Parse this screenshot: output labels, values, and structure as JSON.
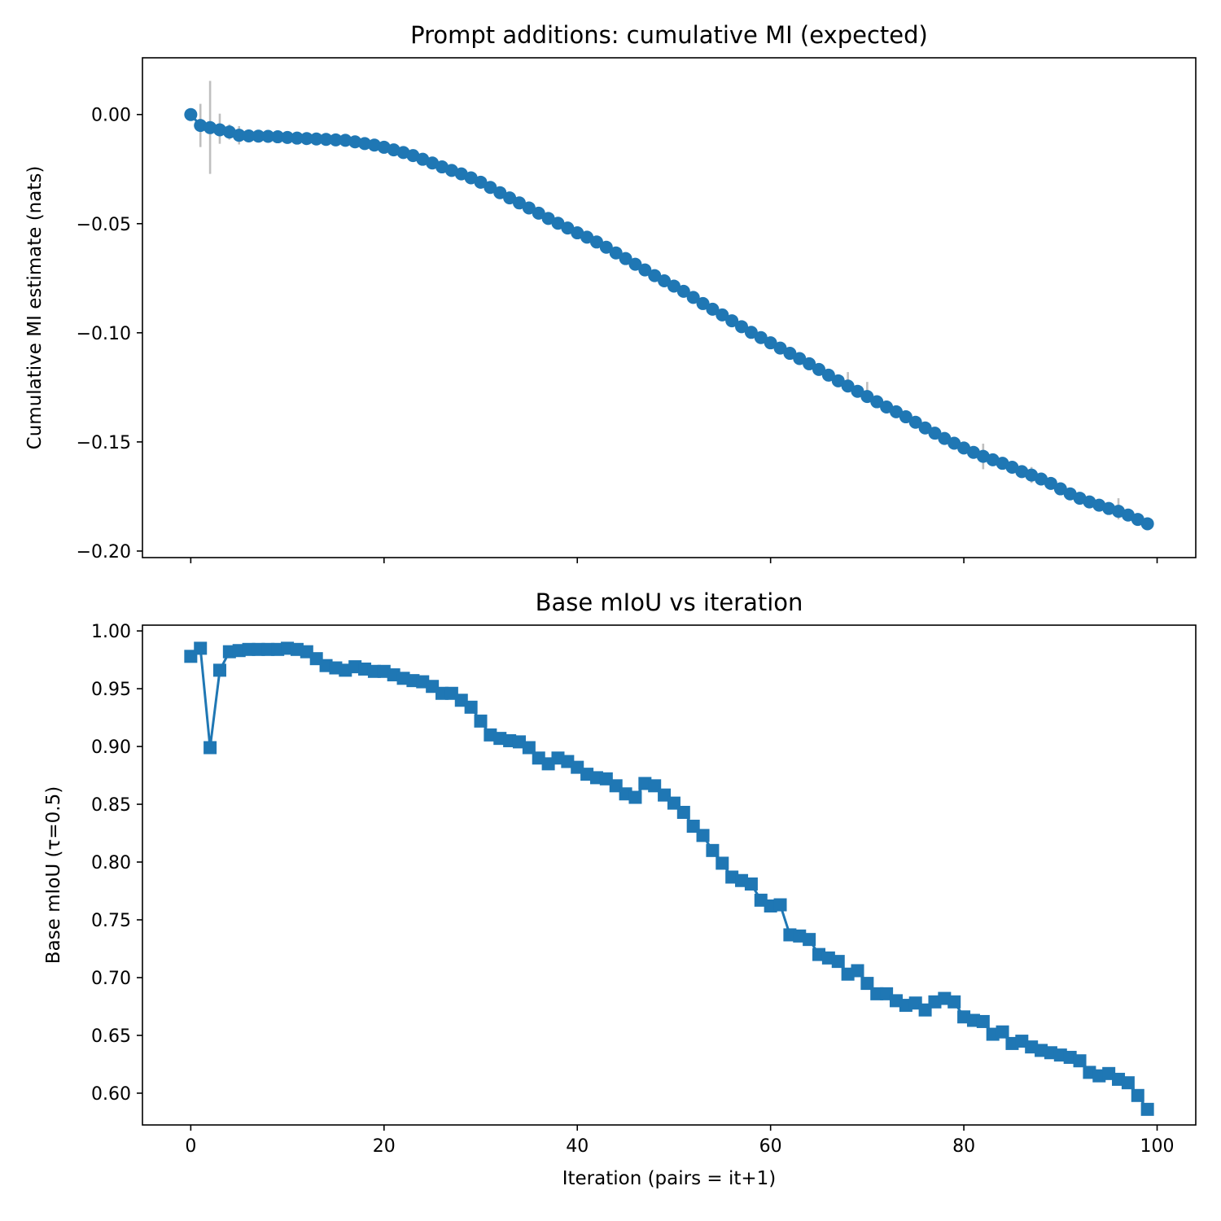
{
  "colors": {
    "series": "#1f77b4",
    "errorbar": "#bfbfbf",
    "axes": "#000000",
    "background": "#ffffff"
  },
  "chart_data": [
    {
      "type": "scatter",
      "title": "Prompt additions: cumulative MI (expected)",
      "xlabel": "",
      "ylabel": "Cumulative MI estimate (nats)",
      "xlim": [
        -5,
        104
      ],
      "ylim": [
        -0.203,
        0.026
      ],
      "xticks": [
        0,
        20,
        40,
        60,
        80,
        100
      ],
      "xtick_labels": [
        "",
        "",
        "",
        "",
        "",
        ""
      ],
      "yticks": [
        0.0,
        -0.05,
        -0.1,
        -0.15,
        -0.2
      ],
      "ytick_labels": [
        "0.00",
        "−0.05",
        "−0.10",
        "−0.15",
        "−0.20"
      ],
      "grid": false,
      "legend": "none",
      "marker": "circle",
      "line": true,
      "x": [
        0,
        1,
        2,
        3,
        4,
        5,
        6,
        7,
        8,
        9,
        10,
        11,
        12,
        13,
        14,
        15,
        16,
        17,
        18,
        19,
        20,
        21,
        22,
        23,
        24,
        25,
        26,
        27,
        28,
        29,
        30,
        31,
        32,
        33,
        34,
        35,
        36,
        37,
        38,
        39,
        40,
        41,
        42,
        43,
        44,
        45,
        46,
        47,
        48,
        49,
        50,
        51,
        52,
        53,
        54,
        55,
        56,
        57,
        58,
        59,
        60,
        61,
        62,
        63,
        64,
        65,
        66,
        67,
        68,
        69,
        70,
        71,
        72,
        73,
        74,
        75,
        76,
        77,
        78,
        79,
        80,
        81,
        82,
        83,
        84,
        85,
        86,
        87,
        88,
        89,
        90,
        91,
        92,
        93,
        94,
        95,
        96,
        97,
        98,
        99
      ],
      "y": [
        0.0,
        -0.005,
        -0.006,
        -0.007,
        -0.008,
        -0.0095,
        -0.0098,
        -0.0099,
        -0.01,
        -0.0102,
        -0.0105,
        -0.0108,
        -0.011,
        -0.0112,
        -0.0114,
        -0.0116,
        -0.0118,
        -0.0125,
        -0.0133,
        -0.014,
        -0.015,
        -0.0162,
        -0.0174,
        -0.0188,
        -0.0205,
        -0.0222,
        -0.024,
        -0.0256,
        -0.0272,
        -0.029,
        -0.031,
        -0.0334,
        -0.0358,
        -0.0382,
        -0.0405,
        -0.0428,
        -0.0452,
        -0.0476,
        -0.0498,
        -0.052,
        -0.0542,
        -0.0562,
        -0.0584,
        -0.0608,
        -0.0634,
        -0.066,
        -0.0686,
        -0.0712,
        -0.0738,
        -0.0762,
        -0.0786,
        -0.081,
        -0.0838,
        -0.0866,
        -0.0892,
        -0.0918,
        -0.0945,
        -0.0972,
        -0.0998,
        -0.1022,
        -0.1046,
        -0.107,
        -0.1094,
        -0.1118,
        -0.1142,
        -0.1168,
        -0.1194,
        -0.122,
        -0.1244,
        -0.1268,
        -0.1292,
        -0.1316,
        -0.134,
        -0.1362,
        -0.1385,
        -0.141,
        -0.1436,
        -0.146,
        -0.1484,
        -0.1506,
        -0.1528,
        -0.1548,
        -0.1566,
        -0.1582,
        -0.1598,
        -0.1616,
        -0.1636,
        -0.1652,
        -0.167,
        -0.169,
        -0.1715,
        -0.1738,
        -0.1758,
        -0.1775,
        -0.179,
        -0.1805,
        -0.1818,
        -0.1835,
        -0.1855,
        -0.1875
      ],
      "errorbars": [
        {
          "x": 1,
          "low": -0.0149,
          "high": 0.0049
        },
        {
          "x": 2,
          "low": -0.0272,
          "high": 0.0154
        },
        {
          "x": 3,
          "low": -0.0134,
          "high": 0.0004
        },
        {
          "x": 4,
          "low": -0.0115,
          "high": -0.0045
        },
        {
          "x": 5,
          "low": -0.0137,
          "high": -0.0053
        },
        {
          "x": 68,
          "low": -0.127,
          "high": -0.118
        },
        {
          "x": 70,
          "low": -0.1315,
          "high": -0.1225
        },
        {
          "x": 82,
          "low": -0.1625,
          "high": -0.1508
        },
        {
          "x": 87,
          "low": -0.1688,
          "high": -0.1615
        },
        {
          "x": 96,
          "low": -0.1855,
          "high": -0.1758
        }
      ]
    },
    {
      "type": "line",
      "title": "Base mIoU vs iteration",
      "xlabel": "Iteration (pairs = it+1)",
      "ylabel": "Base mIoU (τ=0.5)",
      "xlim": [
        -5,
        104
      ],
      "ylim": [
        0.5725,
        1.005
      ],
      "xticks": [
        0,
        20,
        40,
        60,
        80,
        100
      ],
      "xtick_labels": [
        "0",
        "20",
        "40",
        "60",
        "80",
        "100"
      ],
      "yticks": [
        1.0,
        0.95,
        0.9,
        0.85,
        0.8,
        0.75,
        0.7,
        0.65,
        0.6
      ],
      "ytick_labels": [
        "1.00",
        "0.95",
        "0.90",
        "0.85",
        "0.80",
        "0.75",
        "0.70",
        "0.65",
        "0.60"
      ],
      "grid": false,
      "legend": "none",
      "marker": "square",
      "x": [
        0,
        1,
        2,
        3,
        4,
        5,
        6,
        7,
        8,
        9,
        10,
        11,
        12,
        13,
        14,
        15,
        16,
        17,
        18,
        19,
        20,
        21,
        22,
        23,
        24,
        25,
        26,
        27,
        28,
        29,
        30,
        31,
        32,
        33,
        34,
        35,
        36,
        37,
        38,
        39,
        40,
        41,
        42,
        43,
        44,
        45,
        46,
        47,
        48,
        49,
        50,
        51,
        52,
        53,
        54,
        55,
        56,
        57,
        58,
        59,
        60,
        61,
        62,
        63,
        64,
        65,
        66,
        67,
        68,
        69,
        70,
        71,
        72,
        73,
        74,
        75,
        76,
        77,
        78,
        79,
        80,
        81,
        82,
        83,
        84,
        85,
        86,
        87,
        88,
        89,
        90,
        91,
        92,
        93,
        94,
        95,
        96,
        97,
        98,
        99
      ],
      "y": [
        0.978,
        0.985,
        0.899,
        0.966,
        0.982,
        0.983,
        0.984,
        0.984,
        0.984,
        0.984,
        0.985,
        0.984,
        0.982,
        0.976,
        0.97,
        0.968,
        0.966,
        0.969,
        0.967,
        0.965,
        0.965,
        0.962,
        0.959,
        0.957,
        0.956,
        0.952,
        0.946,
        0.946,
        0.94,
        0.934,
        0.922,
        0.91,
        0.907,
        0.905,
        0.904,
        0.899,
        0.89,
        0.885,
        0.89,
        0.887,
        0.882,
        0.876,
        0.873,
        0.872,
        0.866,
        0.859,
        0.856,
        0.868,
        0.866,
        0.858,
        0.851,
        0.843,
        0.831,
        0.823,
        0.81,
        0.799,
        0.787,
        0.784,
        0.781,
        0.767,
        0.762,
        0.763,
        0.737,
        0.736,
        0.733,
        0.72,
        0.717,
        0.714,
        0.703,
        0.706,
        0.695,
        0.686,
        0.686,
        0.68,
        0.676,
        0.678,
        0.672,
        0.679,
        0.682,
        0.679,
        0.666,
        0.663,
        0.662,
        0.651,
        0.653,
        0.643,
        0.645,
        0.64,
        0.637,
        0.635,
        0.633,
        0.631,
        0.628,
        0.618,
        0.615,
        0.617,
        0.612,
        0.609,
        0.598,
        0.586
      ]
    }
  ]
}
